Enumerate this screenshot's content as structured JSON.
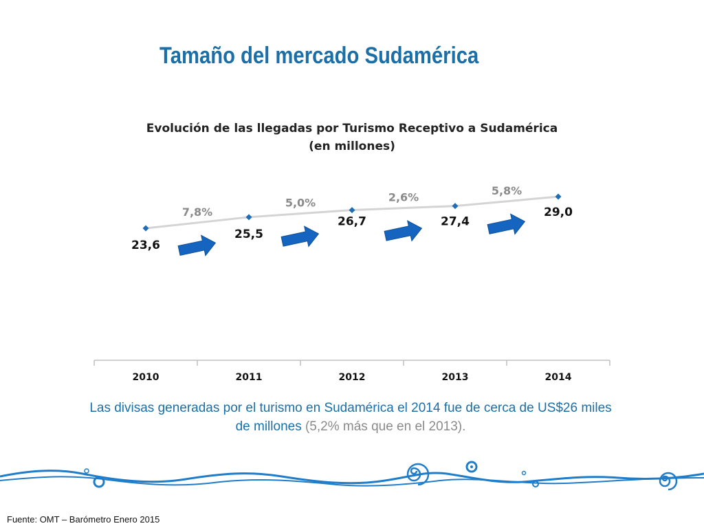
{
  "slide": {
    "title": "Tamaño del mercado Sudamérica",
    "caption_main": "Las divisas generadas por el turismo en Sudamérica el 2014 fue de cerca de US$26 miles de millones",
    "caption_note": "(5,2% más que en el 2013).",
    "source": "Fuente: OMT – Barómetro Enero 2015"
  },
  "colors": {
    "title": "#1a6fa8",
    "marker": "#1f6db5",
    "arrow": "#1565c0",
    "line": "#d4d4d4",
    "pct": "#8a8a8a",
    "wave": "#1f7cc8"
  },
  "chart_data": {
    "type": "line",
    "title": "Evolución de las llegadas por Turismo Receptivo a Sudamérica",
    "subtitle": "(en millones)",
    "categories": [
      "2010",
      "2011",
      "2012",
      "2013",
      "2014"
    ],
    "values": [
      23.6,
      25.5,
      26.7,
      27.4,
      29.0
    ],
    "value_labels": [
      "23,6",
      "25,5",
      "26,7",
      "27,4",
      "29,0"
    ],
    "growth_labels": [
      "7,8%",
      "5,0%",
      "2,6%",
      "5,8%"
    ],
    "ylim": [
      0,
      80
    ],
    "xlabel": "",
    "ylabel": "",
    "grid": false,
    "legend": "none"
  }
}
